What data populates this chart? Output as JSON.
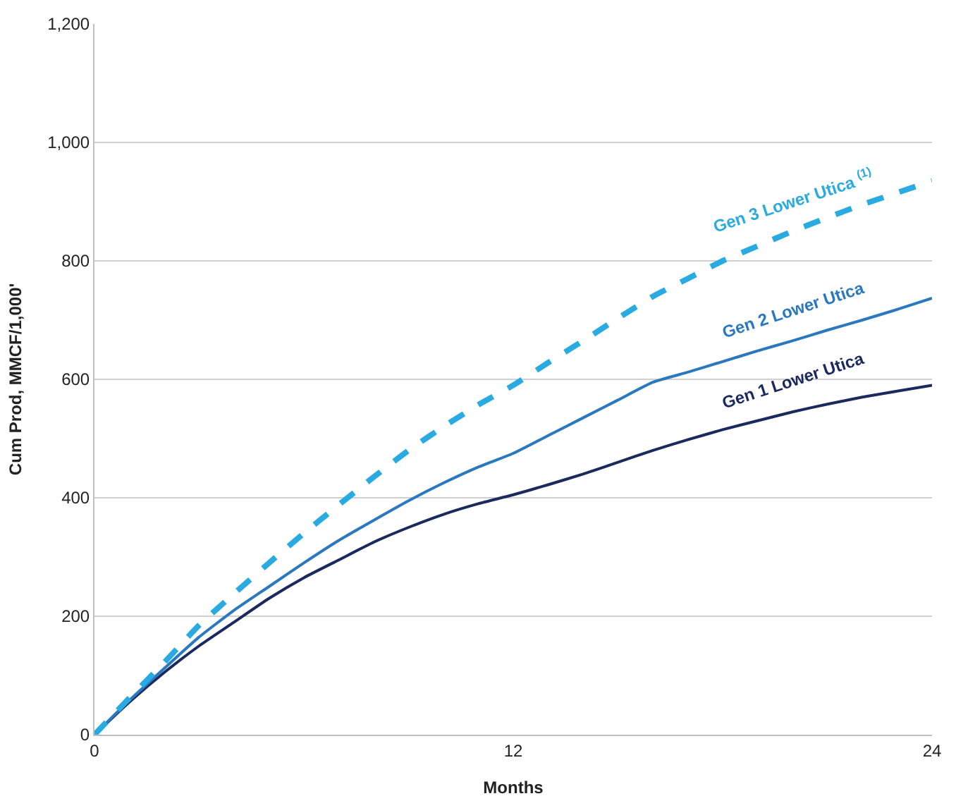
{
  "chart_data": {
    "type": "line",
    "xlabel": "Months",
    "ylabel": "Cum Prod, MMCF/1,000'",
    "x": [
      0,
      1,
      2,
      3,
      4,
      5,
      6,
      7,
      8,
      9,
      10,
      11,
      12,
      13,
      14,
      15,
      16,
      17,
      18,
      19,
      20,
      21,
      22,
      23,
      24
    ],
    "series": [
      {
        "name": "Gen 1 Lower Utica",
        "color": "#1b2a5e",
        "line_style": "solid",
        "values": [
          0,
          55,
          105,
          150,
          190,
          230,
          265,
          295,
          325,
          350,
          372,
          390,
          405,
          422,
          440,
          460,
          480,
          498,
          515,
          530,
          545,
          558,
          570,
          580,
          590
        ]
      },
      {
        "name": "Gen 2 Lower Utica",
        "color": "#2a78bf",
        "line_style": "solid",
        "values": [
          0,
          58,
          112,
          165,
          210,
          250,
          290,
          328,
          362,
          395,
          425,
          452,
          475,
          505,
          535,
          565,
          595,
          612,
          630,
          648,
          665,
          683,
          700,
          718,
          737
        ]
      },
      {
        "name": "Gen 3 Lower Utica $^{(1)}$",
        "color": "#29abe2",
        "line_style": "dashed",
        "values": [
          0,
          62,
          122,
          185,
          238,
          290,
          340,
          388,
          435,
          480,
          520,
          557,
          590,
          628,
          665,
          703,
          740,
          770,
          800,
          825,
          850,
          873,
          895,
          915,
          935
        ]
      }
    ],
    "xlim": [
      0,
      24
    ],
    "xticks": [
      0,
      12,
      24
    ],
    "ylim": [
      0,
      1200
    ],
    "yticks": [
      0,
      {
        "value": 200,
        "label": "200"
      },
      {
        "value": 400,
        "label": "400"
      },
      {
        "value": 600,
        "label": "600"
      },
      {
        "value": 800,
        "label": "800"
      },
      {
        "value": 1000,
        "label": "1,000"
      },
      {
        "value": 1200,
        "label": "1,200"
      }
    ],
    "grid": "y",
    "legend": false,
    "marker": "none"
  }
}
